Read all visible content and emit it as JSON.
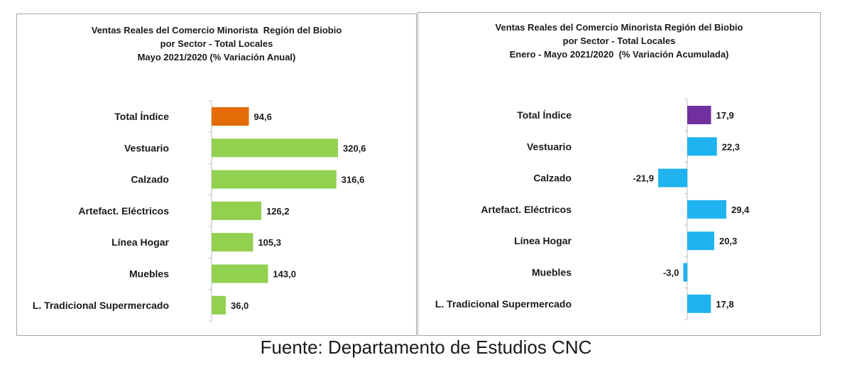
{
  "chart_data": [
    {
      "type": "bar",
      "orientation": "horizontal",
      "title_lines": [
        "Ventas Reales del Comercio Minorista  Región del Biobio",
        "por Sector - Total Locales",
        "Mayo 2021/2020 (% Variación Anual)"
      ],
      "categories": [
        "Total Índice",
        "Vestuario",
        "Calzado",
        "Artefact. Eléctricos",
        "Línea Hogar",
        "Muebles",
        "L. Tradicional Supermercado"
      ],
      "values": [
        94.6,
        320.6,
        316.6,
        126.2,
        105.3,
        143.0,
        36.0
      ],
      "data_labels": [
        "94,6",
        "320,6",
        "316,6",
        "126,2",
        "105,3",
        "143,0",
        "36,0"
      ],
      "bar_colors": [
        "#e36c09",
        "#92d050",
        "#92d050",
        "#92d050",
        "#92d050",
        "#92d050",
        "#92d050"
      ],
      "xlim": [
        0,
        320.6
      ],
      "gridlines": false,
      "legend": "none"
    },
    {
      "type": "bar",
      "orientation": "horizontal",
      "title_lines": [
        "Ventas Reales del Comercio Minorista Región del Biobio",
        "por Sector - Total Locales",
        "Enero - Mayo 2021/2020  (% Variación Acumulada)"
      ],
      "categories": [
        "Total Índice",
        "Vestuario",
        "Calzado",
        "Artefact. Eléctricos",
        "Línea Hogar",
        "Muebles",
        "L. Tradicional Supermercado"
      ],
      "values": [
        17.9,
        22.3,
        -21.9,
        29.4,
        20.3,
        -3.0,
        17.8
      ],
      "data_labels": [
        "17,9",
        "22,3",
        "-21,9",
        "29,4",
        "20,3",
        "-3,0",
        "17,8"
      ],
      "bar_colors": [
        "#7030a0",
        "#1fb3f0",
        "#1fb3f0",
        "#1fb3f0",
        "#1fb3f0",
        "#1fb3f0",
        "#1fb3f0"
      ],
      "xlim": [
        -21.9,
        29.4
      ],
      "gridlines": false,
      "legend": "none"
    }
  ],
  "source_text": "Fuente: Departamento de Estudios CNC"
}
